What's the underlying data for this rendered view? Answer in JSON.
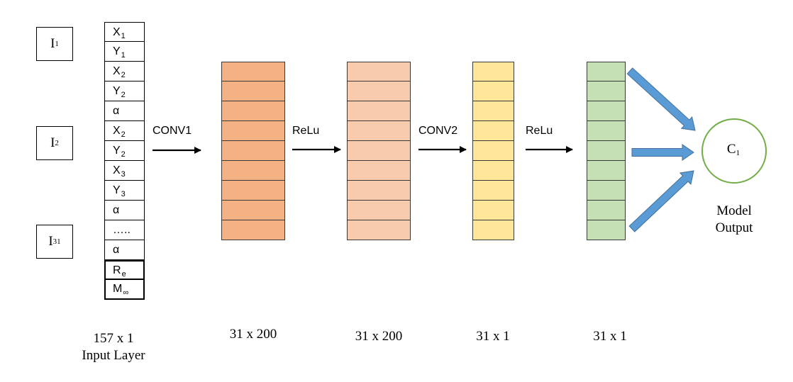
{
  "inputs": [
    {
      "base": "I",
      "sub": "1"
    },
    {
      "base": "I",
      "sub": "2"
    },
    {
      "base": "I",
      "sub": "31"
    }
  ],
  "input_column": [
    {
      "base": "X",
      "sub": "1"
    },
    {
      "base": "Y",
      "sub": "1"
    },
    {
      "base": "X",
      "sub": "2"
    },
    {
      "base": "Y",
      "sub": "2"
    },
    {
      "base": "α",
      "sub": ""
    },
    {
      "base": "X",
      "sub": "2"
    },
    {
      "base": "Y",
      "sub": "2"
    },
    {
      "base": "X",
      "sub": "3"
    },
    {
      "base": "Y",
      "sub": "3"
    },
    {
      "base": "α",
      "sub": ""
    },
    {
      "base": "…..",
      "sub": ""
    },
    {
      "base": "α",
      "sub": ""
    },
    {
      "base": "R",
      "sub": "e"
    },
    {
      "base": "M",
      "sub": "∞"
    }
  ],
  "operations": {
    "conv1": "CONV1",
    "relu1": "ReLu",
    "conv2": "CONV2",
    "relu2": "ReLu"
  },
  "layers": [
    {
      "id": "conv1-output",
      "color": "#F4B183",
      "cells": 9,
      "dim": "31 x 200"
    },
    {
      "id": "relu1-output",
      "color": "#F8CBAD",
      "cells": 9,
      "dim": "31 x 200"
    },
    {
      "id": "conv2-output",
      "color": "#FFE699",
      "cells": 9,
      "dim": "31 x 1"
    },
    {
      "id": "relu2-output",
      "color": "#C5E0B4",
      "cells": 9,
      "dim": "31 x 1"
    }
  ],
  "input_layer": {
    "dim": "157 x 1",
    "name": "Input Layer"
  },
  "output": {
    "node": {
      "base": "C",
      "sub": "1"
    },
    "caption_line1": "Model",
    "caption_line2": "Output",
    "circle_color": "#70AD47",
    "arrow_color": "#5B9BD5"
  }
}
